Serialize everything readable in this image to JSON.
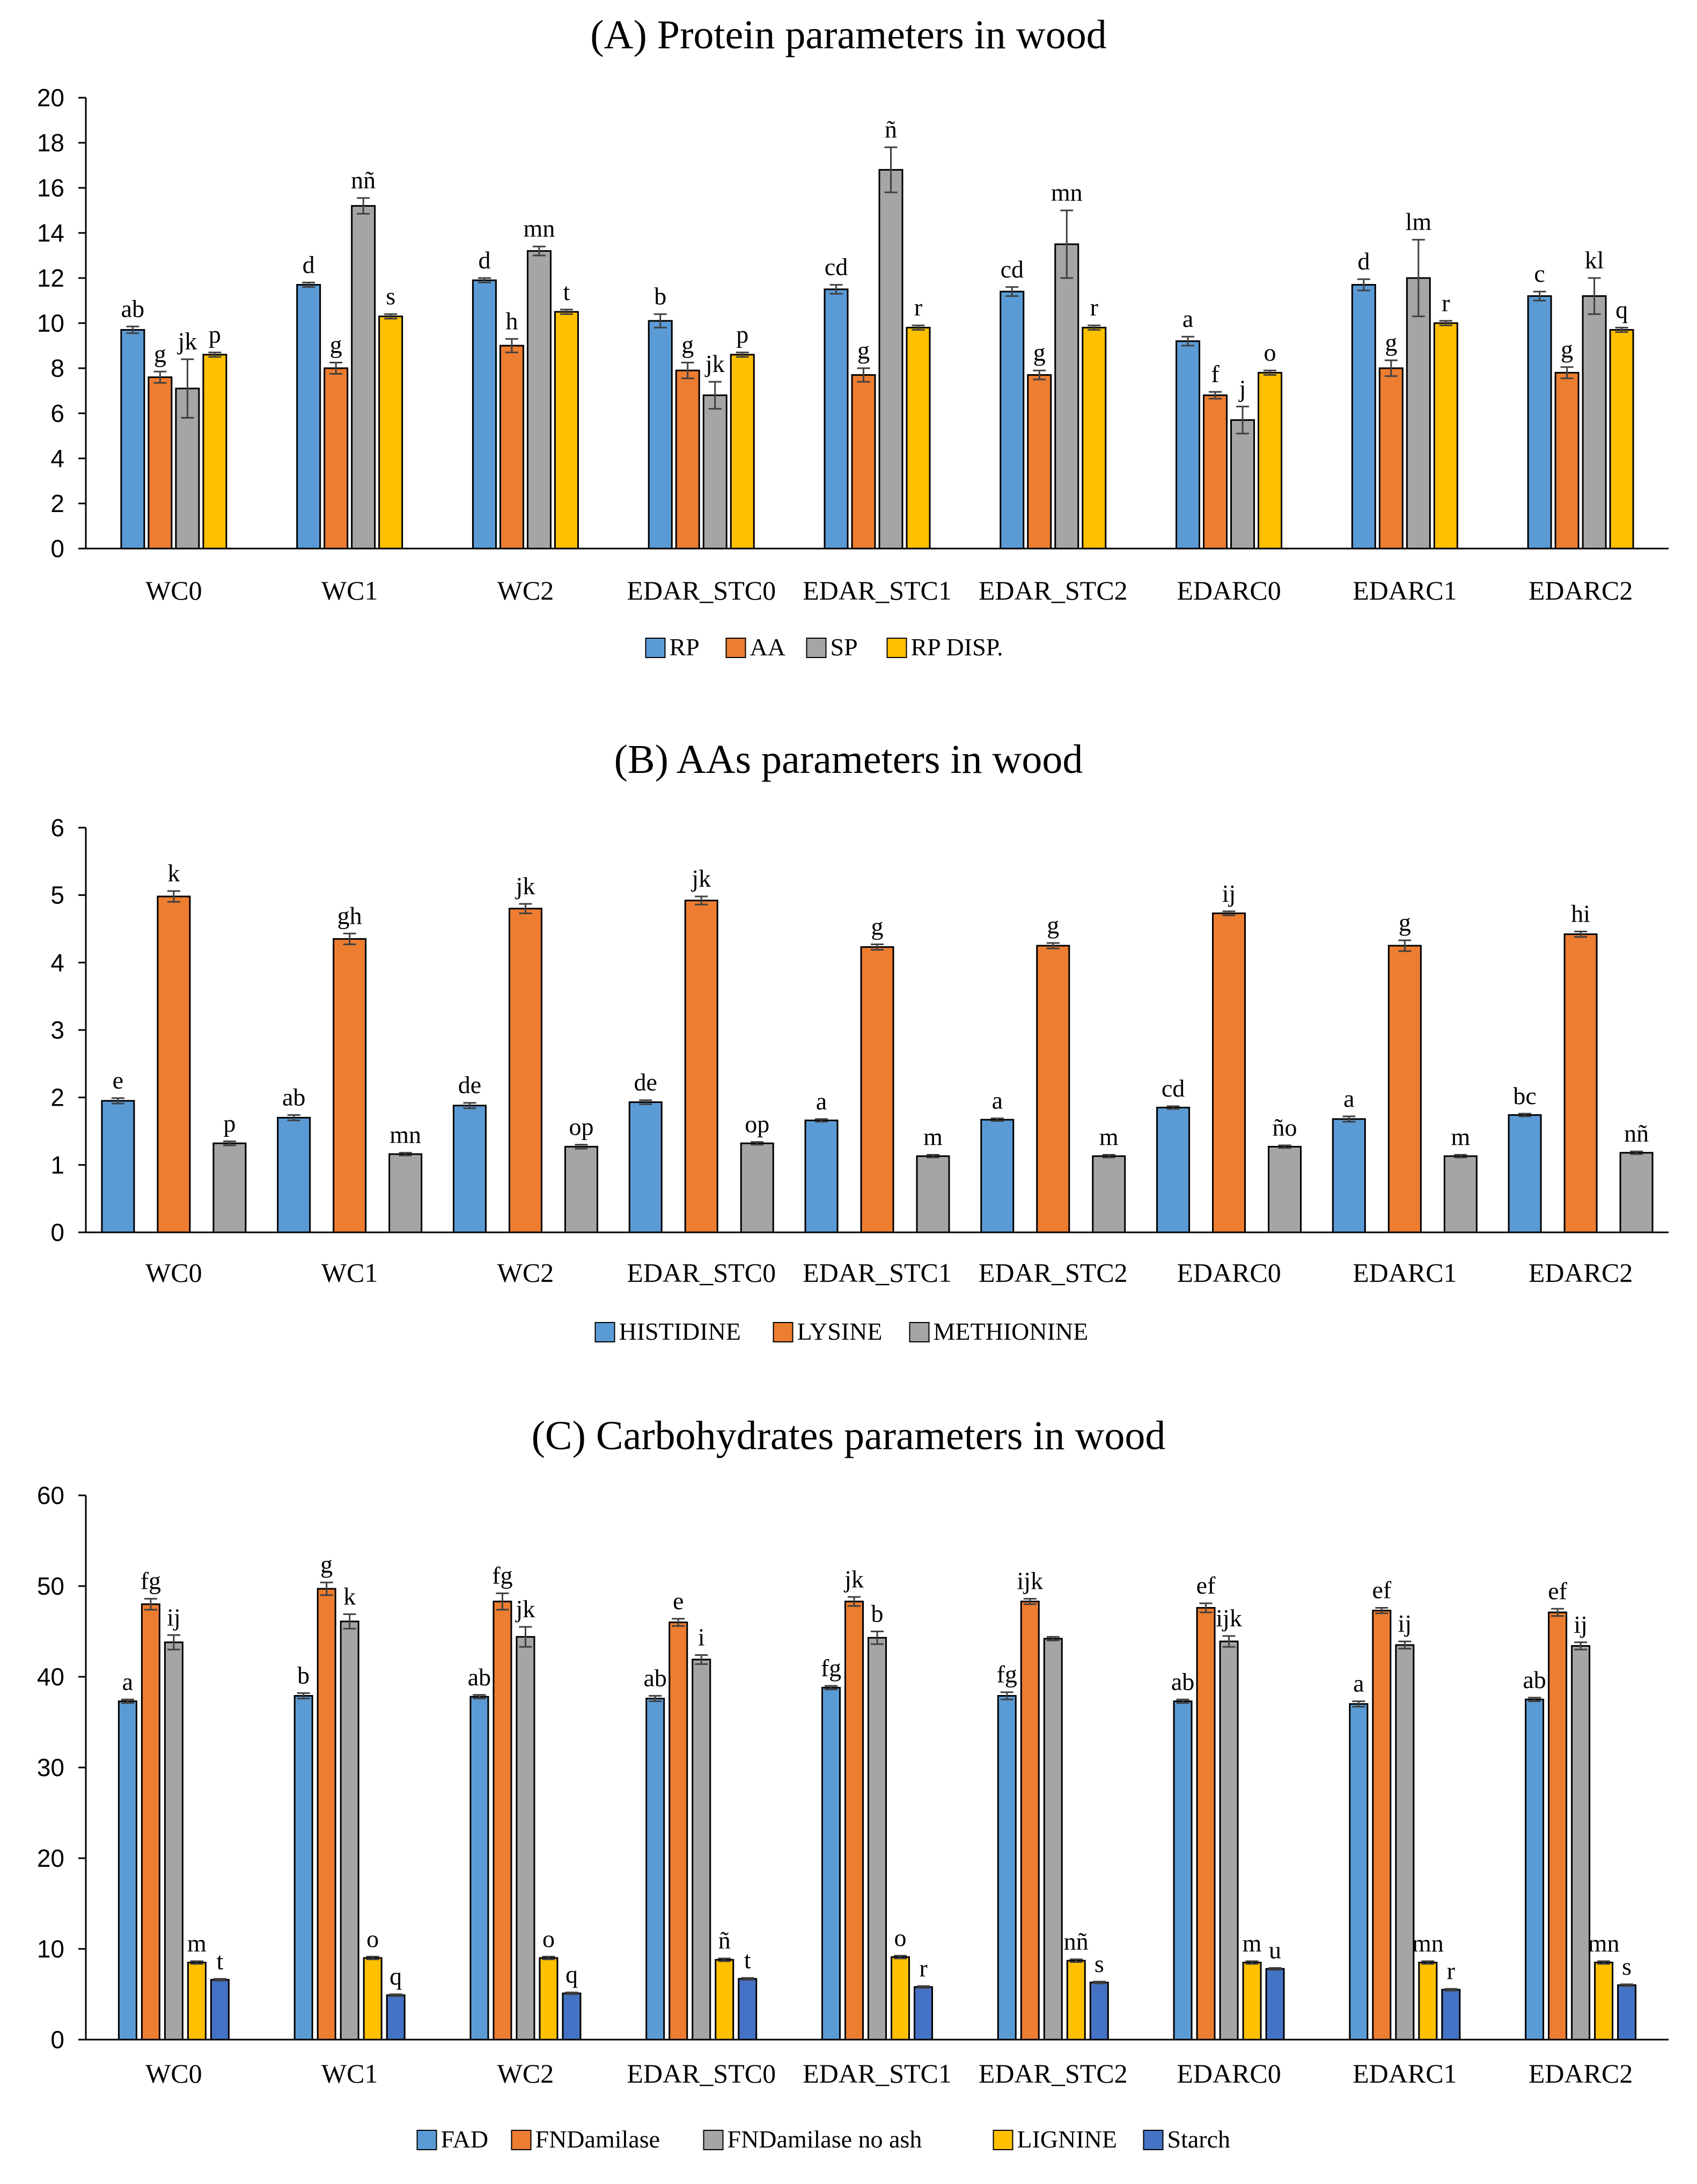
{
  "colors": {
    "blue": "#5b9bd5",
    "orange": "#ed7d31",
    "gray": "#a5a5a5",
    "yellow": "#ffc000",
    "darkblue": "#4472c4",
    "axis": "#000000",
    "errorbar": "#404040"
  },
  "chart_data": [
    {
      "type": "bar",
      "title": "(A) Protein parameters in wood",
      "xlabel": "",
      "ylabel": "",
      "ylim": [
        0,
        20
      ],
      "ytick_step": 2,
      "ytick_labels": [
        "0",
        "2",
        "4",
        "6",
        "8",
        "10",
        "12",
        "14",
        "16",
        "18",
        "20"
      ],
      "grid": false,
      "legend_position": "bottom",
      "categories": [
        "WC0",
        "WC1",
        "WC2",
        "EDAR_STC0",
        "EDAR_STC1",
        "EDAR_STC2",
        "EDARC0",
        "EDARC1",
        "EDARC2"
      ],
      "series": [
        {
          "name": "RP",
          "color": "#5b9bd5",
          "values": [
            9.7,
            11.7,
            11.9,
            10.1,
            11.5,
            11.4,
            9.2,
            11.7,
            11.2
          ],
          "errors": [
            0.15,
            0.1,
            0.1,
            0.3,
            0.2,
            0.2,
            0.2,
            0.25,
            0.2
          ],
          "labels": [
            "ab",
            "d",
            "d",
            "b",
            "cd",
            "cd",
            "a",
            "d",
            "c"
          ]
        },
        {
          "name": "AA",
          "color": "#ed7d31",
          "values": [
            7.6,
            8.0,
            9.0,
            7.9,
            7.7,
            7.7,
            6.8,
            8.0,
            7.8
          ],
          "errors": [
            0.25,
            0.25,
            0.3,
            0.35,
            0.3,
            0.2,
            0.15,
            0.35,
            0.25
          ],
          "labels": [
            "g",
            "g",
            "h",
            "g",
            "g",
            "g",
            "f",
            "g",
            "g"
          ]
        },
        {
          "name": "SP",
          "color": "#a5a5a5",
          "values": [
            7.1,
            15.2,
            13.2,
            6.8,
            16.8,
            13.5,
            5.7,
            12.0,
            11.2
          ],
          "errors": [
            1.3,
            0.35,
            0.2,
            0.6,
            1.0,
            1.5,
            0.6,
            1.7,
            0.8
          ],
          "labels": [
            "jk",
            "nñ",
            "mn",
            "jk",
            "ñ",
            "mn",
            "j",
            "lm",
            "kl"
          ]
        },
        {
          "name": "RP DISP.",
          "color": "#ffc000",
          "values": [
            8.6,
            10.3,
            10.5,
            8.6,
            9.8,
            9.8,
            7.8,
            10.0,
            9.7
          ],
          "errors": [
            0.1,
            0.1,
            0.1,
            0.1,
            0.1,
            0.1,
            0.1,
            0.1,
            0.1
          ],
          "labels": [
            "p",
            "s",
            "t",
            "p",
            "r",
            "r",
            "o",
            "r",
            "q"
          ]
        }
      ]
    },
    {
      "type": "bar",
      "title": "(B) AAs parameters in wood",
      "xlabel": "",
      "ylabel": "",
      "ylim": [
        0,
        6
      ],
      "ytick_step": 1,
      "ytick_labels": [
        "0",
        "1",
        "2",
        "3",
        "4",
        "5",
        "6"
      ],
      "grid": false,
      "legend_position": "bottom",
      "categories": [
        "WC0",
        "WC1",
        "WC2",
        "EDAR_STC0",
        "EDAR_STC1",
        "EDAR_STC2",
        "EDARC0",
        "EDARC1",
        "EDARC2"
      ],
      "series": [
        {
          "name": "HISTIDINE",
          "color": "#5b9bd5",
          "values": [
            1.95,
            1.7,
            1.88,
            1.93,
            1.66,
            1.67,
            1.85,
            1.68,
            1.74
          ],
          "errors": [
            0.04,
            0.04,
            0.04,
            0.03,
            0.02,
            0.02,
            0.02,
            0.04,
            0.02
          ],
          "labels": [
            "e",
            "ab",
            "de",
            "de",
            "a",
            "a",
            "cd",
            "a",
            "bc"
          ]
        },
        {
          "name": "LYSINE",
          "color": "#ed7d31",
          "values": [
            4.98,
            4.35,
            4.8,
            4.92,
            4.23,
            4.25,
            4.73,
            4.25,
            4.42
          ],
          "errors": [
            0.08,
            0.08,
            0.07,
            0.06,
            0.04,
            0.04,
            0.03,
            0.08,
            0.04
          ],
          "labels": [
            "k",
            "gh",
            "jk",
            "jk",
            "g",
            "g",
            "ij",
            "g",
            "hi"
          ]
        },
        {
          "name": "METHIONINE",
          "color": "#a5a5a5",
          "values": [
            1.32,
            1.16,
            1.27,
            1.32,
            1.13,
            1.13,
            1.27,
            1.13,
            1.18
          ],
          "errors": [
            0.03,
            0.02,
            0.03,
            0.02,
            0.02,
            0.02,
            0.02,
            0.02,
            0.02
          ],
          "labels": [
            "p",
            "mn",
            "op",
            "op",
            "m",
            "m",
            "ño",
            "m",
            "nñ"
          ]
        }
      ]
    },
    {
      "type": "bar",
      "title": "(C) Carbohydrates parameters in wood",
      "xlabel": "",
      "ylabel": "",
      "ylim": [
        0,
        60
      ],
      "ytick_step": 10,
      "ytick_labels": [
        "0",
        "10",
        "20",
        "30",
        "40",
        "50",
        "60"
      ],
      "grid": false,
      "legend_position": "bottom",
      "categories": [
        "WC0",
        "WC1",
        "WC2",
        "EDAR_STC0",
        "EDAR_STC1",
        "EDAR_STC2",
        "EDARC0",
        "EDARC1",
        "EDARC2"
      ],
      "series": [
        {
          "name": "FAD",
          "color": "#5b9bd5",
          "values": [
            37.3,
            37.9,
            37.8,
            37.6,
            38.8,
            37.9,
            37.3,
            37.0,
            37.5
          ],
          "errors": [
            0.2,
            0.3,
            0.2,
            0.3,
            0.2,
            0.4,
            0.2,
            0.3,
            0.2
          ],
          "labels": [
            "a",
            "b",
            "ab",
            "ab",
            "fg",
            "fg",
            "ab",
            "a",
            "ab"
          ]
        },
        {
          "name": "FNDamilase",
          "color": "#ed7d31",
          "values": [
            48.0,
            49.7,
            48.3,
            46.0,
            48.3,
            48.3,
            47.6,
            47.3,
            47.1
          ],
          "errors": [
            0.6,
            0.7,
            0.9,
            0.4,
            0.5,
            0.3,
            0.5,
            0.3,
            0.4
          ],
          "labels": [
            "fg",
            "g",
            "fg",
            "e",
            "jk",
            "ijk",
            "ef",
            "ef",
            "ef"
          ]
        },
        {
          "name": "FNDamilase no ash",
          "color": "#a5a5a5",
          "values": [
            43.8,
            46.1,
            44.4,
            41.9,
            44.3,
            44.2,
            43.9,
            43.5,
            43.4
          ],
          "errors": [
            0.8,
            0.8,
            1.1,
            0.5,
            0.7,
            0.2,
            0.6,
            0.4,
            0.4
          ],
          "labels": [
            "ij",
            "k",
            "jk",
            "i",
            "b",
            "",
            "ijk",
            "ij",
            "ij"
          ]
        },
        {
          "name": "LIGNINE",
          "color": "#ffc000",
          "values": [
            8.5,
            9.0,
            9.0,
            8.8,
            9.1,
            8.7,
            8.5,
            8.5,
            8.5
          ],
          "errors": [
            0.15,
            0.15,
            0.15,
            0.15,
            0.15,
            0.15,
            0.15,
            0.15,
            0.15
          ],
          "labels": [
            "m",
            "o",
            "o",
            "ñ",
            "o",
            "nñ",
            "m",
            "mn",
            "mn"
          ]
        },
        {
          "name": "Starch",
          "color": "#4472c4",
          "values": [
            6.6,
            4.9,
            5.1,
            6.7,
            5.8,
            6.3,
            7.8,
            5.5,
            6.0
          ],
          "errors": [
            0.1,
            0.1,
            0.1,
            0.1,
            0.1,
            0.1,
            0.1,
            0.1,
            0.1
          ],
          "labels": [
            "t",
            "q",
            "q",
            "t",
            "r",
            "s",
            "u",
            "r",
            "s"
          ]
        }
      ]
    }
  ]
}
